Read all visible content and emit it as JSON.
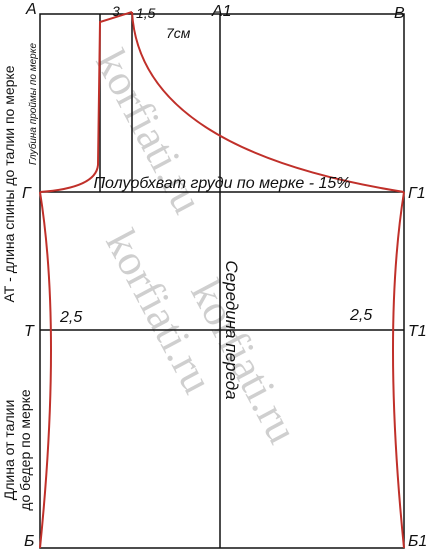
{
  "points": {
    "a": "А",
    "a1": "А1",
    "b": "В",
    "g": "Г",
    "g1": "Г1",
    "t": "Т",
    "t1": "Т1",
    "bb": "Б",
    "bb1": "Б1"
  },
  "measures": {
    "neck_width": "3",
    "neck_height": "1,5",
    "shoulder": "7см",
    "waist_left": "2,5",
    "waist_right": "2,5"
  },
  "notes": {
    "chest": "Полуобхват груди по мерке - 15%",
    "back_length": "АТ - длина спины до талии по мерке",
    "armhole_depth": "Глубина проймы по мерке",
    "hip_length_1": "Длина от талии",
    "hip_length_2": "до бедер по мерке",
    "center_front": "Середина переда"
  },
  "watermark": [
    "korfiati.ru",
    "korfiati.ru",
    "korfiati.ru"
  ]
}
